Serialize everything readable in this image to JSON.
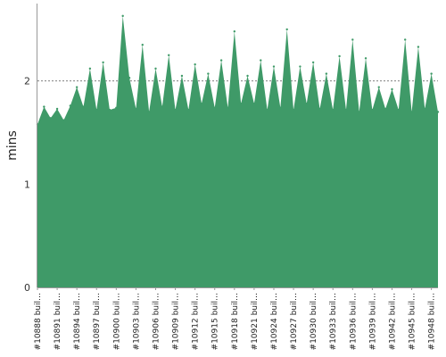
{
  "chart_data": {
    "type": "area",
    "title": "",
    "xlabel": "",
    "ylabel": "mins",
    "ylim": [
      0,
      2.75
    ],
    "yticks": [
      0,
      1,
      2
    ],
    "grid": "horizontal dashed at 1 and 2",
    "legend": "none",
    "fill_color": "#3f9a68",
    "x": [
      "#10888 buil…",
      "#10889 buil…",
      "#10890 buil…",
      "#10891 buil…",
      "#10892 buil…",
      "#10893 buil…",
      "#10894 buil…",
      "#10895 buil…",
      "#10896 buil…",
      "#10897 buil…",
      "#10898 buil…",
      "#10899 buil…",
      "#10900 buil…",
      "#10901 buil…",
      "#10902 buil…",
      "#10903 buil…",
      "#10904 buil…",
      "#10905 buil…",
      "#10906 buil…",
      "#10907 buil…",
      "#10908 buil…",
      "#10909 buil…",
      "#10910 buil…",
      "#10911 buil…",
      "#10912 buil…",
      "#10913 buil…",
      "#10914 buil…",
      "#10915 buil…",
      "#10916 buil…",
      "#10917 buil…",
      "#10918 buil…",
      "#10919 buil…",
      "#10920 buil…",
      "#10921 buil…",
      "#10922 buil…",
      "#10923 buil…",
      "#10924 buil…",
      "#10925 buil…",
      "#10926 buil…",
      "#10927 buil…",
      "#10928 buil…",
      "#10929 buil…",
      "#10930 buil…",
      "#10931 buil…",
      "#10932 buil…",
      "#10933 buil…",
      "#10934 buil…",
      "#10935 buil…",
      "#10936 buil…",
      "#10937 buil…",
      "#10938 buil…",
      "#10939 buil…",
      "#10940 buil…",
      "#10941 buil…",
      "#10942 buil…",
      "#10943 buil…",
      "#10944 buil…",
      "#10945 buil…",
      "#10946 buil…",
      "#10947 buil…",
      "#10948 buil…",
      "#10949 buil…"
    ],
    "values": [
      1.58,
      1.75,
      1.64,
      1.73,
      1.62,
      1.76,
      1.94,
      1.75,
      2.12,
      1.72,
      2.18,
      1.72,
      1.74,
      2.63,
      2.03,
      1.73,
      2.35,
      1.7,
      2.12,
      1.75,
      2.25,
      1.72,
      2.05,
      1.72,
      2.16,
      1.78,
      2.07,
      1.74,
      2.2,
      1.74,
      2.48,
      1.78,
      2.05,
      1.78,
      2.2,
      1.72,
      2.14,
      1.74,
      2.5,
      1.72,
      2.14,
      1.78,
      2.18,
      1.73,
      2.07,
      1.72,
      2.24,
      1.72,
      2.4,
      1.7,
      2.22,
      1.72,
      1.94,
      1.73,
      1.92,
      1.72,
      2.4,
      1.7,
      2.33,
      1.73,
      2.07,
      1.7
    ],
    "x_label_step": 3
  }
}
